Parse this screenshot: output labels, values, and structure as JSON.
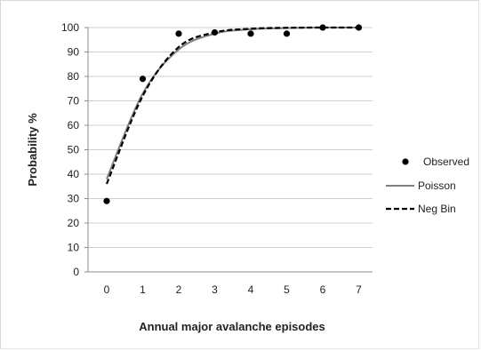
{
  "chart_data": {
    "type": "line",
    "title": "",
    "xlabel": "Annual major avalanche episodes",
    "ylabel": "Probability %",
    "x": [
      0,
      1,
      2,
      3,
      4,
      5,
      6,
      7
    ],
    "xlim": [
      0,
      7
    ],
    "ylim": [
      0,
      100
    ],
    "y_ticks": [
      0,
      10,
      20,
      30,
      40,
      50,
      60,
      70,
      80,
      90,
      100
    ],
    "x_ticks": [
      0,
      1,
      2,
      3,
      4,
      5,
      6,
      7
    ],
    "grid": "horizontal",
    "legend_position": "right",
    "series": [
      {
        "name": "Observed",
        "style": "markers",
        "color": "#000000",
        "values": [
          29,
          79,
          97.5,
          98,
          97.5,
          97.5,
          100,
          100
        ]
      },
      {
        "name": "Poisson",
        "style": "solid-line",
        "color": "#808080",
        "values": [
          38,
          73,
          91,
          97.5,
          99.3,
          99.8,
          100,
          100
        ]
      },
      {
        "name": "Neg Bin",
        "style": "dashed-line",
        "color": "#000000",
        "values": [
          36,
          72,
          92,
          98,
          99.5,
          99.9,
          100,
          100
        ]
      }
    ]
  }
}
